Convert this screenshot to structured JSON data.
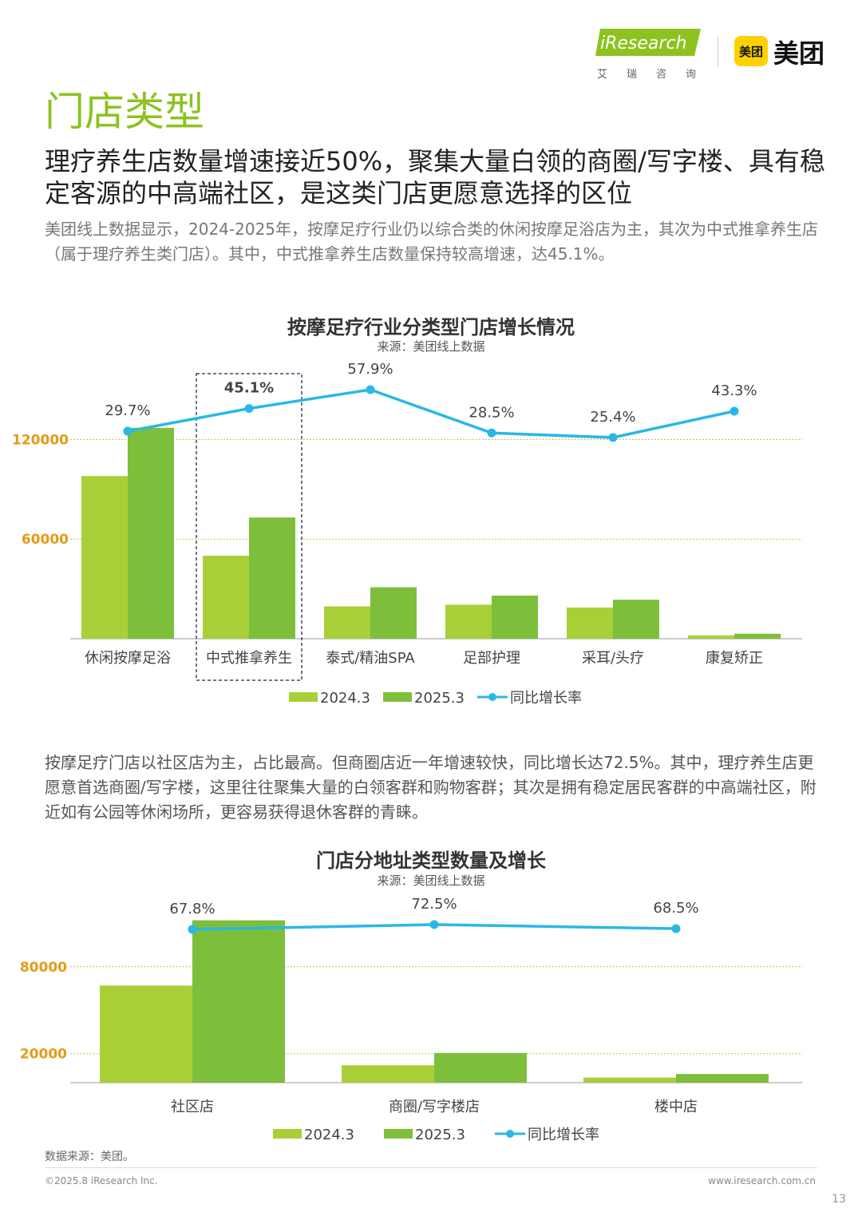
{
  "header": {
    "iresearch_logo": "iResearch",
    "iresearch_sub": "艾瑞咨询",
    "meituan_badge": "美团",
    "meituan_text": "美团"
  },
  "page_title": "门店类型",
  "headline": "理疗养生店数量增速接近50%，聚集大量白领的商圈/写字楼、具有稳定客源的中高端社区，是这类门店更愿意选择的区位",
  "intro": "美团线上数据显示，2024-2025年，按摩足疗行业仍以综合类的休闲按摩足浴店为主，其次为中式推拿养生店（属于理疗养生类门店）。其中，中式推拿养生店数量保持较高增速，达45.1%。",
  "chart1": {
    "title": "按摩足疗行业分类型门店增长情况",
    "source": "来源：美团线上数据"
  },
  "middle_text": "按摩足疗门店以社区店为主，占比最高。但商圈店近一年增速较快，同比增长达72.5%。其中，理疗养生店更愿意首选商圈/写字楼，这里往往聚集大量的白领客群和购物客群；其次是拥有稳定居民客群的中高端社区，附近如有公园等休闲场所，更容易获得退休客群的青睐。",
  "chart2": {
    "title": "门店分地址类型数量及增长",
    "source": "来源：美团线上数据"
  },
  "footer": {
    "data_source": "数据来源：美团。",
    "copyright": "©2025.8 iResearch Inc.",
    "url": "www.iresearch.com.cn",
    "page_number": "13"
  },
  "colors": {
    "bar_2024": "#A9CF38",
    "bar_2025": "#7DBF3B",
    "line": "#29B8E5",
    "axis_label": "#E39B16",
    "gridline": "#D9B84A",
    "title_green": "#8DC21F"
  },
  "chart_data": [
    {
      "type": "bar",
      "categories": [
        "休闲按摩足浴",
        "中式推拿养生",
        "泰式/精油SPA",
        "足部护理",
        "采耳/头疗",
        "康复矫正"
      ],
      "series": [
        {
          "name": "2024.3",
          "values": [
            98000,
            50000,
            19500,
            20500,
            18800,
            2000
          ]
        },
        {
          "name": "2025.3",
          "values": [
            127000,
            73000,
            31000,
            26000,
            23500,
            3000
          ]
        }
      ],
      "line_series": {
        "name": "同比增长率",
        "values": [
          29.7,
          45.1,
          57.9,
          28.5,
          25.4,
          43.3
        ],
        "labels": [
          "29.7%",
          "45.1%",
          "57.9%",
          "28.5%",
          "25.4%",
          "43.3%"
        ]
      },
      "y_ticks": [
        "60000",
        "120000"
      ],
      "ylim": [
        0,
        150000
      ],
      "highlight_category": "中式推拿养生",
      "legend_position": "bottom",
      "grid": true
    },
    {
      "type": "bar",
      "categories": [
        "社区店",
        "商圈/写字楼店",
        "楼中店"
      ],
      "series": [
        {
          "name": "2024.3",
          "values": [
            67000,
            12000,
            3500
          ]
        },
        {
          "name": "2025.3",
          "values": [
            112000,
            20500,
            6000
          ]
        }
      ],
      "line_series": {
        "name": "同比增长率",
        "values": [
          67.8,
          72.5,
          68.5
        ],
        "labels": [
          "67.8%",
          "72.5%",
          "68.5%"
        ]
      },
      "y_ticks": [
        "20000",
        "80000"
      ],
      "ylim": [
        0,
        130000
      ],
      "legend_position": "bottom",
      "grid": true
    }
  ]
}
